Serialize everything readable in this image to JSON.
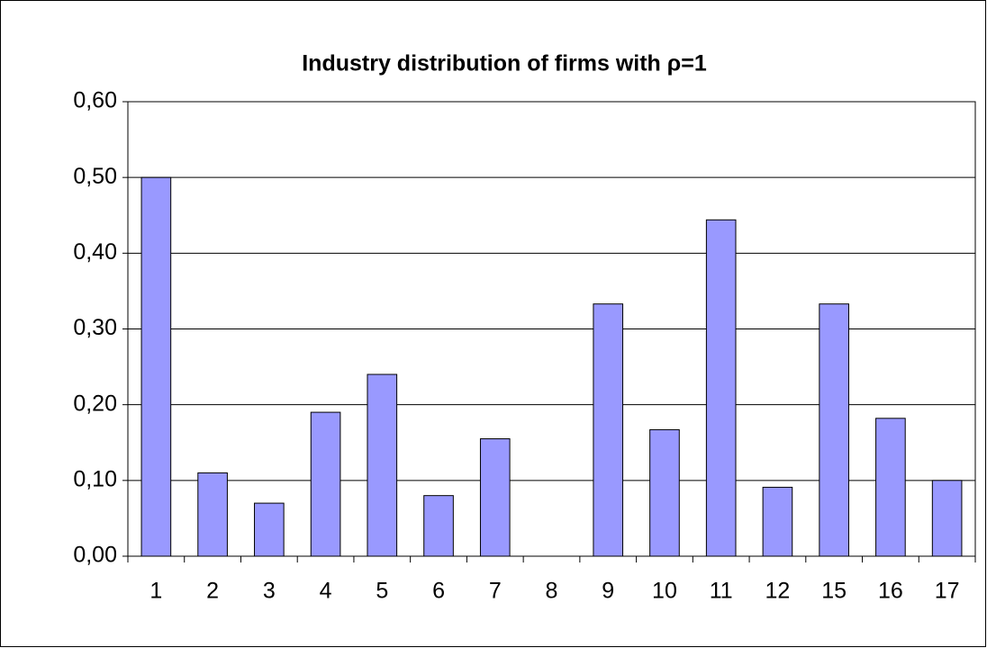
{
  "chart_data": {
    "type": "bar",
    "title": "Industry distribution of firms with ρ=1",
    "categories": [
      "1",
      "2",
      "3",
      "4",
      "5",
      "6",
      "7",
      "8",
      "9",
      "10",
      "11",
      "12",
      "15",
      "16",
      "17"
    ],
    "values": [
      0.5,
      0.11,
      0.07,
      0.19,
      0.24,
      0.08,
      0.155,
      0,
      0.333,
      0.167,
      0.444,
      0.091,
      0.333,
      0.182,
      0.1
    ],
    "color": "#9999ff",
    "ylim": [
      0,
      0.6
    ],
    "yticks": [
      {
        "value": 0,
        "label": "0,00"
      },
      {
        "value": 0.1,
        "label": "0,10"
      },
      {
        "value": 0.2,
        "label": "0,20"
      },
      {
        "value": 0.3,
        "label": "0,30"
      },
      {
        "value": 0.4,
        "label": "0,40"
      },
      {
        "value": 0.5,
        "label": "0,50"
      },
      {
        "value": 0.6,
        "label": "0,60"
      }
    ],
    "grid": true
  }
}
